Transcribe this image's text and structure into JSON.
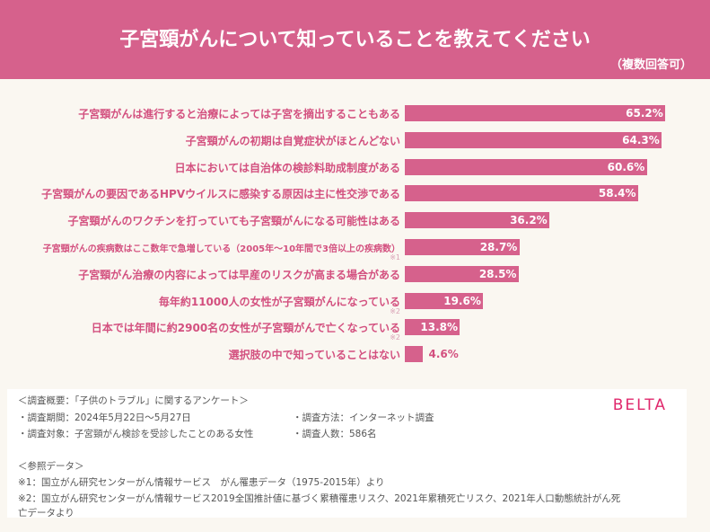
{
  "header": {
    "title": "子宮頸がんについて知っていることを教えてください",
    "subtitle": "（複数回答可）"
  },
  "chart_data": {
    "type": "bar",
    "orientation": "horizontal",
    "xlim": [
      0,
      100
    ],
    "categories": [
      "子宮頸がんは進行すると治療によっては子宮を摘出することもある",
      "子宮頸がんの初期は自覚症状がほとんどない",
      "日本においては自治体の検診料助成制度がある",
      "子宮頸がんの要因であるHPVウイルスに感染する原因は主に性交渉である",
      "子宮頸がんのワクチンを打っていても子宮頸がんになる可能性はある",
      "子宮頸がんの疾病数はここ数年で急増している（2005年～10年間で3倍以上の疾病数）",
      "子宮頸がん治療の内容によっては早産のリスクが高まる場合がある",
      "毎年約11000人の女性が子宮頸がんになっている",
      "日本では年間に約2900名の女性が子宮頸がんで亡くなっている",
      "選択肢の中で知っていることはない"
    ],
    "values": [
      65.2,
      64.3,
      60.6,
      58.4,
      36.2,
      28.7,
      28.5,
      19.6,
      13.8,
      4.6
    ],
    "value_labels": [
      "65.2%",
      "64.3%",
      "60.6%",
      "58.4%",
      "36.2%",
      "28.7%",
      "28.5%",
      "19.6%",
      "13.8%",
      "4.6%"
    ],
    "notes": [
      "",
      "",
      "",
      "",
      "",
      "※1",
      "",
      "※2",
      "※2",
      ""
    ]
  },
  "footer": {
    "lines": [
      "＜調査概要：「子供のトラブル」に関するアンケート＞",
      "・調査期間：2024年5月22日～5月27日",
      "・調査方法：インターネット調査",
      "・調査対象：子宮頸がん検診を受診したことのある女性",
      "・調査人数：586名",
      "＜参照データ＞",
      "※1：国立がん研究センターがん情報サービス　がん罹患データ（1975-2015年）より",
      "※2：国立がん研究センターがん情報サービス2019全国推計値に基づく累積罹患リスク、2021年累積死亡リスク、2021年人口動態統計がん死",
      "亡データより"
    ],
    "logo": "BELTA"
  }
}
